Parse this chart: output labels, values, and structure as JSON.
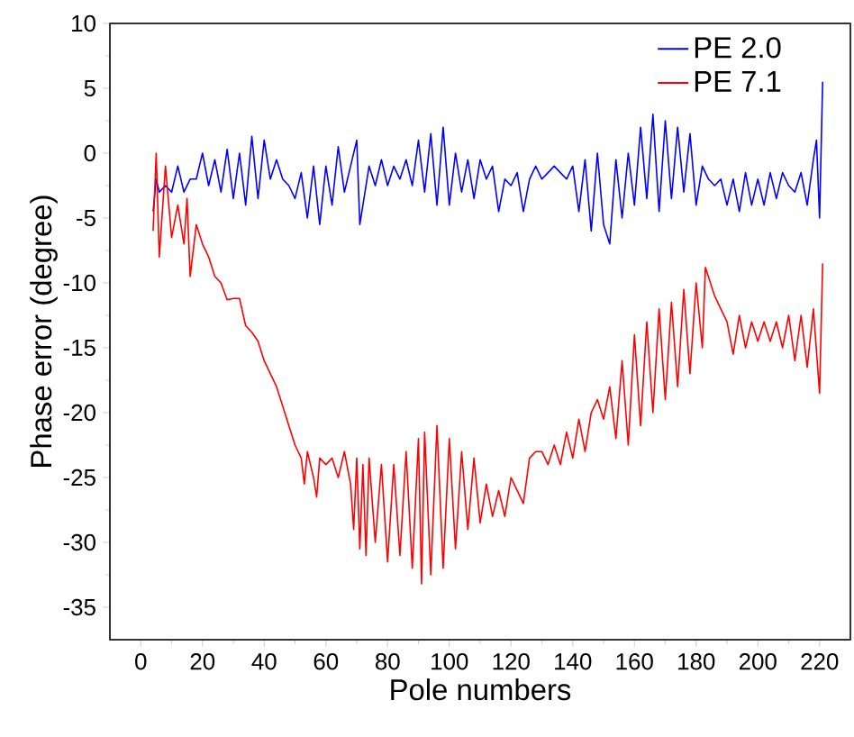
{
  "chart_data": {
    "type": "line",
    "xlabel": "Pole numbers",
    "ylabel": "Phase error (degree)",
    "xlim": [
      -10,
      230
    ],
    "ylim": [
      -37.5,
      10
    ],
    "xticks": [
      0,
      20,
      40,
      60,
      80,
      100,
      120,
      140,
      160,
      180,
      200,
      220
    ],
    "yticks": [
      -35,
      -30,
      -25,
      -20,
      -15,
      -10,
      -5,
      0,
      5,
      10
    ],
    "legend": "top right",
    "grid": false,
    "marker": "none",
    "line_style": "solid",
    "series": [
      {
        "name": "PE 2.0",
        "color": "#0000ff",
        "x": [
          4,
          5,
          6,
          8,
          10,
          12,
          14,
          16,
          18,
          20,
          22,
          24,
          26,
          28,
          30,
          32,
          34,
          36,
          38,
          40,
          42,
          44,
          46,
          48,
          50,
          52,
          54,
          56,
          58,
          60,
          62,
          64,
          66,
          68,
          70,
          71,
          74,
          76,
          78,
          80,
          82,
          84,
          86,
          88,
          90,
          92,
          94,
          96,
          98,
          100,
          102,
          104,
          106,
          108,
          110,
          112,
          114,
          116,
          118,
          120,
          122,
          124,
          126,
          128,
          130,
          132,
          134,
          136,
          138,
          140,
          142,
          144,
          146,
          148,
          150,
          152,
          154,
          156,
          158,
          160,
          162,
          164,
          166,
          168,
          170,
          172,
          174,
          176,
          178,
          180,
          182,
          184,
          186,
          188,
          190,
          192,
          194,
          196,
          198,
          200,
          202,
          204,
          206,
          208,
          210,
          212,
          214,
          216,
          218,
          219,
          220,
          221
        ],
        "values": [
          -4.5,
          -2,
          -3,
          -2.5,
          -3,
          -1,
          -3,
          -2,
          -2,
          0,
          -2.5,
          -0.5,
          -3,
          0.3,
          -3.5,
          0,
          -4,
          1.3,
          -3.5,
          1,
          -2,
          -0.5,
          -2,
          -2.5,
          -3.5,
          -1.5,
          -5,
          -1,
          -5.5,
          -1,
          -4,
          0.5,
          -3,
          -1,
          1,
          -5.5,
          -1,
          -2.5,
          -0.5,
          -2.5,
          -1,
          -2,
          -0.5,
          -2.5,
          1,
          -3,
          1.5,
          -4,
          2,
          -4,
          0,
          -3,
          -0.5,
          -3.5,
          -0.5,
          -2,
          -1,
          -4.5,
          -2,
          -2.5,
          -1.5,
          -4.5,
          -2,
          -1,
          -2,
          -1.5,
          -1,
          -1.5,
          -2,
          -1,
          -4.5,
          -0.5,
          -6,
          0,
          -5.5,
          -7,
          -0.5,
          -5,
          0,
          -4,
          2,
          -3.5,
          3,
          -4.5,
          2.5,
          -3.5,
          2,
          -3,
          1.5,
          -4,
          -1,
          -2,
          -2.5,
          -2,
          -4,
          -2,
          -4.5,
          -1.5,
          -4,
          -2,
          -4,
          -1.5,
          -3.5,
          -1.5,
          -2.5,
          -3,
          -1.5,
          -4,
          -0.5,
          1,
          -5,
          5.5
        ]
      },
      {
        "name": "PE 7.1",
        "color": "#ff0000",
        "x": [
          4,
          5,
          6,
          8,
          10,
          12,
          14,
          15,
          16,
          18,
          20,
          22,
          24,
          26,
          28,
          30,
          32,
          34,
          36,
          38,
          40,
          42,
          44,
          46,
          48,
          50,
          52,
          53,
          54,
          56,
          57,
          58,
          60,
          62,
          64,
          66,
          68,
          69,
          70,
          71,
          72,
          73,
          74,
          76,
          78,
          80,
          82,
          84,
          86,
          88,
          90,
          91,
          92,
          94,
          96,
          98,
          100,
          102,
          104,
          106,
          108,
          110,
          112,
          114,
          116,
          118,
          120,
          122,
          124,
          126,
          128,
          130,
          132,
          134,
          136,
          138,
          140,
          142,
          144,
          146,
          148,
          150,
          152,
          154,
          156,
          158,
          160,
          162,
          164,
          166,
          168,
          170,
          172,
          174,
          176,
          178,
          180,
          182,
          183,
          186,
          188,
          190,
          192,
          194,
          196,
          198,
          200,
          202,
          204,
          206,
          208,
          210,
          212,
          214,
          216,
          218,
          220,
          221
        ],
        "values": [
          -6,
          0,
          -8,
          -1,
          -6.5,
          -4,
          -7,
          -3.5,
          -9.5,
          -5.5,
          -7,
          -8,
          -9.5,
          -10,
          -11.3,
          -11.2,
          -11.2,
          -13.3,
          -13.8,
          -14.5,
          -16,
          -17,
          -18,
          -19.5,
          -21,
          -22.5,
          -23.5,
          -25.5,
          -23,
          -25,
          -26.5,
          -23.5,
          -24,
          -23.5,
          -25,
          -23,
          -25.5,
          -29,
          -23.5,
          -30.5,
          -24,
          -31,
          -23.5,
          -30,
          -24,
          -31.5,
          -24,
          -31,
          -23,
          -32,
          -22,
          -33.2,
          -21.5,
          -32.5,
          -21,
          -32,
          -22,
          -30.5,
          -23,
          -29,
          -23.5,
          -28.5,
          -25.5,
          -28,
          -26,
          -28,
          -25,
          -26,
          -27,
          -23.5,
          -23,
          -23,
          -24,
          -22.5,
          -24,
          -21.5,
          -23.5,
          -20.5,
          -23,
          -20,
          -19,
          -20.5,
          -18,
          -22,
          -16,
          -22.5,
          -14,
          -21,
          -13,
          -20,
          -12,
          -19,
          -11.5,
          -18,
          -10.5,
          -17,
          -10,
          -15,
          -8.8,
          -11,
          -12,
          -13,
          -15.5,
          -12.5,
          -15,
          -13,
          -14.5,
          -13,
          -14.5,
          -13,
          -15,
          -12.5,
          -16,
          -12.5,
          -16.5,
          -12,
          -18.5,
          -8.5
        ]
      }
    ]
  }
}
